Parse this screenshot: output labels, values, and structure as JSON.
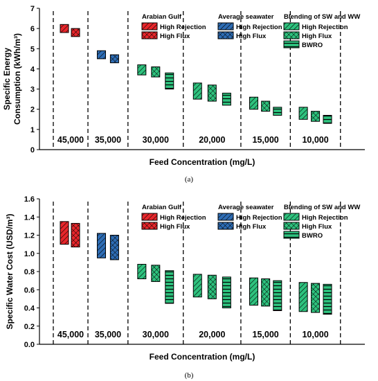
{
  "chart_data": [
    {
      "type": "bar",
      "panel_label": "(a)",
      "xlabel": "Feed Concentration (mg/L)",
      "ylabel_line1": "Specific Energy",
      "ylabel_line2": "Consumption (kWh/m³)",
      "ylim": [
        0,
        7
      ],
      "yticks": [
        "0",
        "1",
        "2",
        "3",
        "4",
        "5",
        "6",
        "7"
      ],
      "grid": false,
      "legend_position": "top-right",
      "groups": [
        {
          "label": "45,000",
          "source": "Arabian Gulf",
          "bars": [
            {
              "series": "High Rejection",
              "low": 5.8,
              "high": 6.2
            },
            {
              "series": "High Flux",
              "low": 5.6,
              "high": 6.0
            }
          ]
        },
        {
          "label": "35,000",
          "source": "Average seawater",
          "bars": [
            {
              "series": "High Rejection",
              "low": 4.5,
              "high": 4.9
            },
            {
              "series": "High Flux",
              "low": 4.3,
              "high": 4.7
            }
          ]
        },
        {
          "label": "30,000",
          "source": "Blending of SW and WW",
          "bars": [
            {
              "series": "High Rejection",
              "low": 3.7,
              "high": 4.2
            },
            {
              "series": "High Flux",
              "low": 3.6,
              "high": 4.1
            },
            {
              "series": "BWRO",
              "low": 3.0,
              "high": 3.8
            }
          ]
        },
        {
          "label": "20,000",
          "source": "Blending of SW and WW",
          "bars": [
            {
              "series": "High Rejection",
              "low": 2.5,
              "high": 3.3
            },
            {
              "series": "High Flux",
              "low": 2.4,
              "high": 3.2
            },
            {
              "series": "BWRO",
              "low": 2.2,
              "high": 2.8
            }
          ]
        },
        {
          "label": "15,000",
          "source": "Blending of SW and WW",
          "bars": [
            {
              "series": "High Rejection",
              "low": 2.0,
              "high": 2.6
            },
            {
              "series": "High Flux",
              "low": 1.9,
              "high": 2.4
            },
            {
              "series": "BWRO",
              "low": 1.7,
              "high": 2.1
            }
          ]
        },
        {
          "label": "10,000",
          "source": "Blending of SW and WW",
          "bars": [
            {
              "series": "High Rejection",
              "low": 1.5,
              "high": 2.1
            },
            {
              "series": "High Flux",
              "low": 1.4,
              "high": 1.9
            },
            {
              "series": "BWRO",
              "low": 1.3,
              "high": 1.7
            }
          ]
        }
      ],
      "legend": [
        {
          "title": "Arabian Gulf",
          "color": "#e8262b",
          "entries": [
            "High Rejection",
            "High Flux"
          ]
        },
        {
          "title": "Average seawater",
          "color": "#2e6db5",
          "entries": [
            "High Rejection",
            "High Flux"
          ]
        },
        {
          "title": "Blending of SW and WW",
          "color": "#2ec27e",
          "entries": [
            "High Rejection",
            "High Flux",
            "BWRO"
          ]
        }
      ]
    },
    {
      "type": "bar",
      "panel_label": "(b)",
      "xlabel": "Feed Concentration (mg/L)",
      "ylabel_line1": "Specific Water Cost (USD/m³)",
      "ylabel_line2": "",
      "ylim": [
        0,
        1.6
      ],
      "yticks": [
        "0.0",
        "0.2",
        "0.4",
        "0.6",
        "0.8",
        "1.0",
        "1.2",
        "1.4",
        "1.6"
      ],
      "grid": false,
      "legend_position": "top-right",
      "groups": [
        {
          "label": "45,000",
          "source": "Arabian Gulf",
          "bars": [
            {
              "series": "High Rejection",
              "low": 1.1,
              "high": 1.35
            },
            {
              "series": "High Flux",
              "low": 1.07,
              "high": 1.33
            }
          ]
        },
        {
          "label": "35,000",
          "source": "Average seawater",
          "bars": [
            {
              "series": "High Rejection",
              "low": 0.95,
              "high": 1.22
            },
            {
              "series": "High Flux",
              "low": 0.93,
              "high": 1.2
            }
          ]
        },
        {
          "label": "30,000",
          "source": "Blending of SW and WW",
          "bars": [
            {
              "series": "High Rejection",
              "low": 0.72,
              "high": 0.88
            },
            {
              "series": "High Flux",
              "low": 0.69,
              "high": 0.87
            },
            {
              "series": "BWRO",
              "low": 0.45,
              "high": 0.81
            }
          ]
        },
        {
          "label": "20,000",
          "source": "Blending of SW and WW",
          "bars": [
            {
              "series": "High Rejection",
              "low": 0.52,
              "high": 0.77
            },
            {
              "series": "High Flux",
              "low": 0.5,
              "high": 0.76
            },
            {
              "series": "BWRO",
              "low": 0.4,
              "high": 0.74
            }
          ]
        },
        {
          "label": "15,000",
          "source": "Blending of SW and WW",
          "bars": [
            {
              "series": "High Rejection",
              "low": 0.43,
              "high": 0.73
            },
            {
              "series": "High Flux",
              "low": 0.42,
              "high": 0.72
            },
            {
              "series": "BWRO",
              "low": 0.37,
              "high": 0.7
            }
          ]
        },
        {
          "label": "10,000",
          "source": "Blending of SW and WW",
          "bars": [
            {
              "series": "High Rejection",
              "low": 0.36,
              "high": 0.68
            },
            {
              "series": "High Flux",
              "low": 0.35,
              "high": 0.67
            },
            {
              "series": "BWRO",
              "low": 0.33,
              "high": 0.66
            }
          ]
        }
      ],
      "legend": [
        {
          "title": "Arabian Gulf",
          "color": "#e8262b",
          "entries": [
            "High Rejection",
            "High Flux"
          ]
        },
        {
          "title": "Average seawater",
          "color": "#2e6db5",
          "entries": [
            "High Rejection",
            "High Flux"
          ]
        },
        {
          "title": "Blending of SW and WW",
          "color": "#2ec27e",
          "entries": [
            "High Rejection",
            "High Flux",
            "BWRO"
          ]
        }
      ]
    }
  ]
}
